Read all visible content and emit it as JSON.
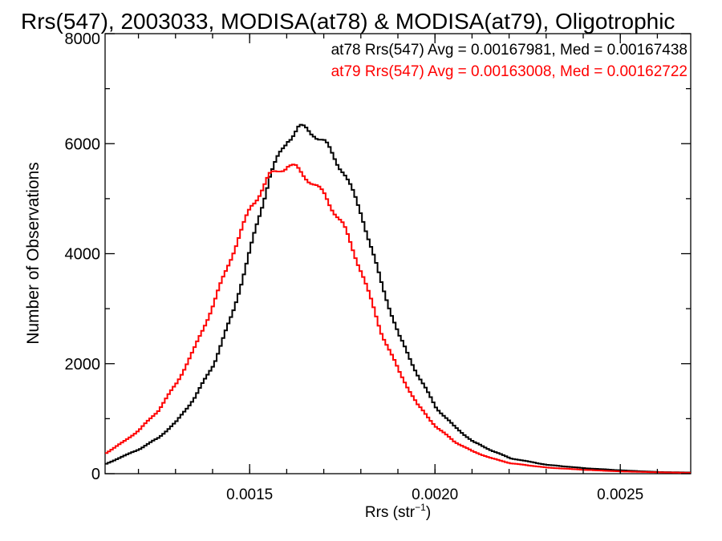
{
  "chart_data": {
    "type": "line",
    "title": "Rrs(547), 2003033, MODISA(at78) & MODISA(at79), Oligotrophic",
    "xlabel_main": "Rrs (str",
    "xlabel_sup": "−1",
    "xlabel_end": ")",
    "ylabel": "Number of Observations",
    "xlim": [
      0.00111,
      0.00269
    ],
    "ylim": [
      0,
      8000
    ],
    "x_ticks": [
      0.0015,
      0.002,
      0.0025
    ],
    "x_tick_labels": [
      "0.0015",
      "0.0020",
      "0.0025"
    ],
    "y_ticks": [
      0,
      2000,
      4000,
      6000,
      8000
    ],
    "y_tick_labels": [
      "0",
      "2000",
      "4000",
      "6000",
      "8000"
    ],
    "grid": false,
    "legend": "top-right",
    "annotations": [
      {
        "text": "at78 Rrs(547) Avg = 0.00167981, Med = 0.00167438",
        "color": "#000000"
      },
      {
        "text": "at79 Rrs(547) Avg = 0.00163008, Med = 0.00162722",
        "color": "#ff0000"
      }
    ],
    "series": [
      {
        "color": "#000000",
        "x": [
          0.00111,
          0.00115,
          0.0012,
          0.00125,
          0.0013,
          0.00135,
          0.0014,
          0.00145,
          0.0015,
          0.00155,
          0.0016,
          0.00163,
          0.00165,
          0.00167,
          0.0017,
          0.00175,
          0.0018,
          0.00185,
          0.0019,
          0.00195,
          0.002,
          0.00205,
          0.0021,
          0.00215,
          0.0022,
          0.0023,
          0.0024,
          0.0025,
          0.0026,
          0.00269
        ],
        "y": [
          180,
          300,
          450,
          650,
          950,
          1400,
          2000,
          2900,
          4100,
          5400,
          6100,
          6280,
          6250,
          6200,
          6000,
          5500,
          4700,
          3500,
          2500,
          1800,
          1200,
          850,
          580,
          420,
          280,
          160,
          100,
          60,
          30,
          20
        ]
      },
      {
        "color": "#ff0000",
        "x": [
          0.00111,
          0.00115,
          0.0012,
          0.00125,
          0.0013,
          0.00135,
          0.0014,
          0.00145,
          0.0015,
          0.00155,
          0.00158,
          0.0016,
          0.00162,
          0.00165,
          0.0017,
          0.00175,
          0.0018,
          0.00185,
          0.0019,
          0.00195,
          0.002,
          0.00205,
          0.0021,
          0.00215,
          0.0022,
          0.0023,
          0.0024,
          0.0025,
          0.0026,
          0.00269
        ],
        "y": [
          380,
          550,
          800,
          1150,
          1650,
          2300,
          3100,
          4000,
          4850,
          5400,
          5550,
          5600,
          5550,
          5400,
          5050,
          4500,
          3650,
          2600,
          1850,
          1250,
          850,
          580,
          400,
          280,
          190,
          110,
          70,
          40,
          25,
          15
        ]
      }
    ]
  }
}
